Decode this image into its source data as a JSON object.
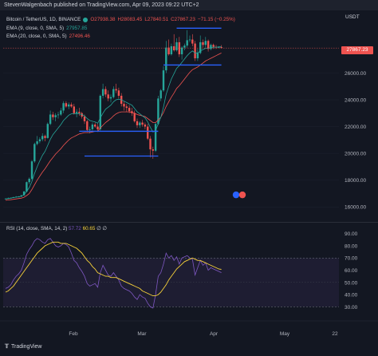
{
  "header": {
    "publisher": "StevenWalgenbach published on TradingView.com, Apr 09, 2023 09:22 UTC+2"
  },
  "legend": {
    "symbol": "Bitcoin / TetherUS, 1D, BINANCE",
    "o": "O27938.38",
    "h": "H28083.45",
    "l": "L27840.51",
    "c": "C27867.23",
    "chg": "−71.15 (−0.25%)",
    "ema9_label": "EMA (9, close, 0, SMA, 5)",
    "ema9_value": "27957.85",
    "ema20_label": "EMA (20, close, 0, SMA, 5)",
    "ema20_value": "27496.46"
  },
  "rsi_legend": {
    "label": "RSI (14, close, SMA, 14, 2)",
    "rsi": "57.72",
    "sma": "60.65",
    "extra": "∅ ∅"
  },
  "currency": "USDT",
  "last_price": "27867.23",
  "brand": {
    "name": "TradingView"
  },
  "colors": {
    "up": "#26a69a",
    "down": "#ef5350",
    "ema9": "#2962ff",
    "ema20": "#ef5350",
    "rsi": "#7e57c2",
    "rsi_ma": "#f7d23a",
    "levels": "#2962ff"
  },
  "chart_data": [
    {
      "type": "candlestick",
      "ylim": [
        15000,
        30500
      ],
      "yticks": [
        "16000.00",
        "18000.00",
        "20000.00",
        "22000.00",
        "24000.00",
        "26000.00"
      ],
      "xticks": [
        "Feb",
        "Mar",
        "Apr",
        "May",
        "22"
      ],
      "candles": [
        [
          16600,
          16650,
          16580,
          16620
        ],
        [
          16620,
          16700,
          16600,
          16650
        ],
        [
          16650,
          16700,
          16630,
          16680
        ],
        [
          16680,
          16760,
          16660,
          16730
        ],
        [
          16730,
          16800,
          16700,
          16760
        ],
        [
          16760,
          16800,
          16720,
          16770
        ],
        [
          16770,
          16900,
          16750,
          16860
        ],
        [
          16860,
          17200,
          16850,
          17150
        ],
        [
          17150,
          17900,
          17100,
          17850
        ],
        [
          17850,
          18200,
          17700,
          18100
        ],
        [
          18100,
          19500,
          18000,
          19400
        ],
        [
          19400,
          20800,
          19300,
          20700
        ],
        [
          20700,
          21300,
          20600,
          20900
        ],
        [
          20900,
          21200,
          20750,
          21050
        ],
        [
          21050,
          21500,
          20900,
          21300
        ],
        [
          21300,
          21400,
          20900,
          21150
        ],
        [
          21150,
          22300,
          21100,
          22200
        ],
        [
          22200,
          23200,
          22100,
          22900
        ],
        [
          22900,
          23100,
          22500,
          22700
        ],
        [
          22700,
          23000,
          22400,
          22850
        ],
        [
          22850,
          23100,
          22600,
          22900
        ],
        [
          22900,
          23400,
          22800,
          23200
        ],
        [
          23200,
          23900,
          23000,
          23750
        ],
        [
          23750,
          23900,
          23400,
          23500
        ],
        [
          23500,
          23800,
          23300,
          23650
        ],
        [
          23650,
          23800,
          23400,
          23500
        ],
        [
          23500,
          23700,
          22900,
          23000
        ],
        [
          23000,
          23300,
          22700,
          23100
        ],
        [
          23100,
          23400,
          22800,
          23000
        ],
        [
          23000,
          23100,
          22600,
          22750
        ],
        [
          22750,
          22900,
          22200,
          22400
        ],
        [
          22400,
          22500,
          21600,
          21750
        ],
        [
          21750,
          22000,
          21500,
          21800
        ],
        [
          21800,
          22300,
          21700,
          22150
        ],
        [
          22150,
          22300,
          21900,
          22000
        ],
        [
          22000,
          22200,
          21600,
          21800
        ],
        [
          21800,
          24400,
          21700,
          24300
        ],
        [
          24300,
          25200,
          24100,
          24800
        ],
        [
          24800,
          25000,
          24200,
          24400
        ],
        [
          24400,
          24700,
          23900,
          24100
        ],
        [
          24100,
          24400,
          23800,
          24200
        ],
        [
          24200,
          25000,
          24100,
          24800
        ],
        [
          24800,
          25200,
          24500,
          24700
        ],
        [
          24700,
          24900,
          24100,
          24300
        ],
        [
          24300,
          24500,
          23500,
          23700
        ],
        [
          23700,
          23900,
          23200,
          23500
        ],
        [
          23500,
          23700,
          23100,
          23400
        ],
        [
          23400,
          23600,
          23000,
          23150
        ],
        [
          23150,
          23400,
          22800,
          23000
        ],
        [
          23000,
          23200,
          22300,
          22400
        ],
        [
          22400,
          22600,
          21900,
          22100
        ],
        [
          22100,
          22400,
          21900,
          22300
        ],
        [
          22300,
          22500,
          22000,
          22150
        ],
        [
          22150,
          22300,
          21800,
          22000
        ],
        [
          22000,
          22200,
          21000,
          21100
        ],
        [
          21100,
          21300,
          19700,
          20300
        ],
        [
          20300,
          20500,
          19600,
          20200
        ],
        [
          20200,
          22300,
          20100,
          22200
        ],
        [
          22200,
          24300,
          22100,
          24100
        ],
        [
          24100,
          24800,
          23900,
          24700
        ],
        [
          24700,
          26500,
          24600,
          26200
        ],
        [
          26200,
          28400,
          26000,
          27900
        ],
        [
          27900,
          28500,
          27300,
          27400
        ],
        [
          27400,
          28200,
          27300,
          28000
        ],
        [
          28000,
          28900,
          27600,
          27700
        ],
        [
          27700,
          28600,
          27600,
          28300
        ],
        [
          28300,
          28700,
          27200,
          27400
        ],
        [
          27400,
          28000,
          27000,
          27900
        ],
        [
          27900,
          28200,
          27700,
          28050
        ],
        [
          28050,
          29200,
          27900,
          28450
        ],
        [
          28450,
          28800,
          28300,
          28500
        ],
        [
          28500,
          28900,
          28000,
          28200
        ],
        [
          28200,
          28400,
          26900,
          27100
        ],
        [
          27100,
          27800,
          26900,
          27500
        ],
        [
          27500,
          28800,
          27400,
          28300
        ],
        [
          28300,
          28500,
          27900,
          28100
        ],
        [
          28100,
          28700,
          27900,
          28400
        ],
        [
          28400,
          28500,
          27600,
          27800
        ],
        [
          27800,
          28200,
          27700,
          28100
        ],
        [
          28100,
          28200,
          27800,
          27950
        ],
        [
          27950,
          28100,
          27800,
          27900
        ],
        [
          27900,
          28000,
          27850,
          27930
        ],
        [
          27938,
          28083,
          27840,
          27867
        ]
      ],
      "ema9": [
        16600,
        16630,
        16660,
        16700,
        16730,
        16760,
        16800,
        16900,
        17150,
        17450,
        17900,
        18500,
        19000,
        19450,
        19850,
        20150,
        20600,
        21050,
        21400,
        21650,
        21900,
        22150,
        22450,
        22650,
        22850,
        22950,
        22950,
        22950,
        22950,
        22900,
        22800,
        22600,
        22450,
        22400,
        22350,
        22250,
        22650,
        23000,
        23300,
        23450,
        23600,
        23850,
        24000,
        24050,
        24000,
        23900,
        23800,
        23700,
        23600,
        23350,
        23100,
        22950,
        22800,
        22650,
        22350,
        21950,
        21600,
        21700,
        22200,
        22700,
        23450,
        24400,
        25000,
        25550,
        25950,
        26350,
        26550,
        26800,
        27050,
        27300,
        27500,
        27650,
        27500,
        27500,
        27650,
        27750,
        27850,
        27850,
        27900,
        27930,
        27930,
        27950,
        27957
      ],
      "ema20": [
        16500,
        16520,
        16540,
        16570,
        16600,
        16630,
        16660,
        16720,
        16850,
        17000,
        17300,
        17650,
        18000,
        18300,
        18600,
        18850,
        19150,
        19450,
        19700,
        19950,
        20150,
        20350,
        20600,
        20800,
        21000,
        21150,
        21250,
        21350,
        21450,
        21500,
        21550,
        21550,
        21550,
        21600,
        21650,
        21650,
        21900,
        22100,
        22300,
        22450,
        22600,
        22800,
        22950,
        23050,
        23100,
        23100,
        23100,
        23100,
        23050,
        23000,
        22900,
        22850,
        22800,
        22750,
        22600,
        22450,
        22300,
        22300,
        22500,
        22700,
        23050,
        23500,
        23850,
        24200,
        24500,
        24850,
        25050,
        25300,
        25550,
        25800,
        26050,
        26250,
        26350,
        26450,
        26600,
        26750,
        26900,
        27000,
        27100,
        27200,
        27300,
        27400,
        27496
      ],
      "levels": [
        {
          "y": 29350,
          "from": 65,
          "to": 82
        },
        {
          "y": 26600,
          "from": 60,
          "to": 82
        },
        {
          "y": 21650,
          "from": 28,
          "to": 58
        },
        {
          "y": 19800,
          "from": 30,
          "to": 58
        }
      ]
    },
    {
      "type": "line",
      "ylim": [
        25,
        95
      ],
      "yticks": [
        "90.00",
        "80.00",
        "70.00",
        "60.00",
        "50.00",
        "40.00",
        "30.00"
      ],
      "band": [
        30,
        70
      ],
      "rsi": [
        45,
        46,
        48,
        52,
        55,
        57,
        60,
        66,
        73,
        77,
        80,
        84,
        86,
        85,
        83,
        82,
        85,
        86,
        83,
        80,
        79,
        80,
        82,
        81,
        79,
        74,
        68,
        66,
        62,
        59,
        55,
        49,
        47,
        48,
        49,
        46,
        58,
        64,
        60,
        56,
        55,
        58,
        55,
        52,
        47,
        45,
        44,
        43,
        41,
        38,
        36,
        40,
        38,
        37,
        33,
        30,
        29,
        40,
        55,
        58,
        65,
        74,
        70,
        72,
        68,
        71,
        65,
        70,
        71,
        72,
        70,
        69,
        56,
        62,
        68,
        64,
        66,
        60,
        62,
        61,
        60,
        59,
        58
      ],
      "rsi_ma": [
        42,
        43,
        45,
        47,
        50,
        53,
        56,
        59,
        62,
        65,
        68,
        71,
        74,
        76,
        78,
        80,
        81,
        82,
        83,
        83,
        83,
        82,
        82,
        82,
        81,
        80,
        79,
        78,
        76,
        74,
        71,
        68,
        66,
        63,
        61,
        58,
        57,
        56,
        55,
        55,
        54,
        54,
        54,
        53,
        52,
        51,
        50,
        49,
        48,
        47,
        46,
        45,
        43,
        42,
        41,
        40,
        39,
        39,
        40,
        42,
        45,
        48,
        52,
        55,
        58,
        61,
        63,
        65,
        67,
        68,
        69,
        70,
        69,
        68,
        68,
        67,
        66,
        65,
        64,
        63,
        62,
        61,
        60.65
      ]
    }
  ]
}
